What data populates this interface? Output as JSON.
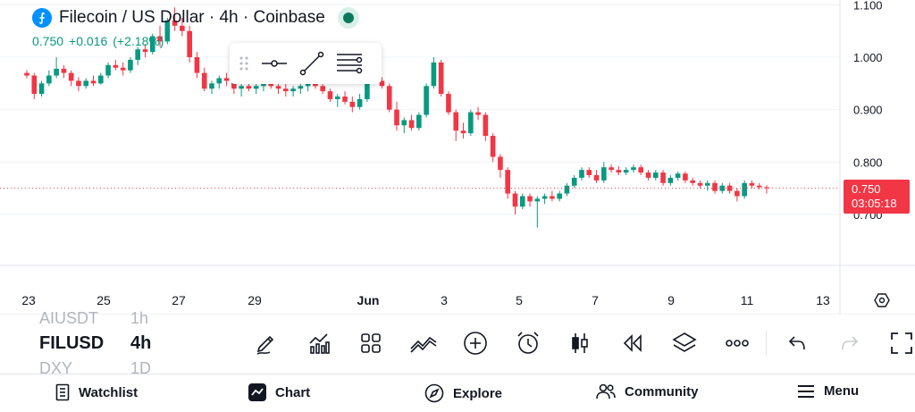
{
  "header": {
    "coin_glyph": "⨍",
    "title": "Filecoin / US Dollar · 4h · Coinbase",
    "price": "0.750",
    "change": "+0.016",
    "change_pct": "(+2.18%)"
  },
  "colors": {
    "up": "#089981",
    "down": "#f23645",
    "badge": "#0090ff",
    "grid": "#f0f3fa"
  },
  "price_axis": {
    "labels": [
      "1.100",
      "1.000",
      "0.900",
      "0.800",
      "0.700"
    ],
    "last_price": "0.750",
    "countdown": "03:05:18"
  },
  "time_axis": {
    "labels": [
      "23",
      "25",
      "27",
      "29",
      "Jun",
      "3",
      "5",
      "7",
      "9",
      "11",
      "13"
    ]
  },
  "chart_data": {
    "type": "candlestick",
    "symbol": "FILUSD",
    "interval": "4h",
    "ylim": [
      0.62,
      1.1
    ],
    "last": 0.75,
    "candles": [
      [
        0.97,
        0.975,
        0.96,
        0.965
      ],
      [
        0.965,
        0.97,
        0.92,
        0.93
      ],
      [
        0.93,
        0.955,
        0.925,
        0.95
      ],
      [
        0.95,
        0.975,
        0.945,
        0.965
      ],
      [
        0.965,
        1.0,
        0.96,
        0.978
      ],
      [
        0.978,
        0.985,
        0.96,
        0.97
      ],
      [
        0.97,
        0.975,
        0.945,
        0.955
      ],
      [
        0.955,
        0.962,
        0.935,
        0.945
      ],
      [
        0.945,
        0.96,
        0.94,
        0.955
      ],
      [
        0.955,
        0.965,
        0.945,
        0.95
      ],
      [
        0.95,
        0.97,
        0.948,
        0.965
      ],
      [
        0.965,
        0.99,
        0.96,
        0.985
      ],
      [
        0.985,
        0.995,
        0.975,
        0.98
      ],
      [
        0.98,
        0.99,
        0.965,
        0.975
      ],
      [
        0.975,
        1.0,
        0.97,
        0.995
      ],
      [
        0.995,
        1.02,
        0.985,
        1.015
      ],
      [
        1.015,
        1.025,
        1.0,
        1.01
      ],
      [
        1.01,
        1.045,
        1.005,
        1.04
      ],
      [
        1.04,
        1.06,
        1.02,
        1.03
      ],
      [
        1.03,
        1.075,
        1.025,
        1.07
      ],
      [
        1.07,
        1.095,
        1.05,
        1.06
      ],
      [
        1.06,
        1.075,
        1.04,
        1.05
      ],
      [
        1.05,
        1.06,
        0.99,
        1.0
      ],
      [
        1.0,
        1.01,
        0.96,
        0.97
      ],
      [
        0.97,
        0.98,
        0.935,
        0.94
      ],
      [
        0.94,
        0.955,
        0.93,
        0.95
      ],
      [
        0.95,
        0.965,
        0.94,
        0.96
      ],
      [
        0.96,
        0.97,
        0.945,
        0.955
      ],
      [
        0.955,
        0.96,
        0.93,
        0.94
      ],
      [
        0.94,
        0.95,
        0.925,
        0.945
      ],
      [
        0.945,
        0.955,
        0.935,
        0.94
      ],
      [
        0.94,
        0.95,
        0.93,
        0.945
      ],
      [
        0.945,
        0.955,
        0.935,
        0.95
      ],
      [
        0.95,
        0.96,
        0.94,
        0.945
      ],
      [
        0.945,
        0.955,
        0.93,
        0.94
      ],
      [
        0.94,
        0.95,
        0.925,
        0.935
      ],
      [
        0.935,
        0.945,
        0.925,
        0.94
      ],
      [
        0.94,
        0.95,
        0.93,
        0.945
      ],
      [
        0.945,
        0.955,
        0.935,
        0.95
      ],
      [
        0.95,
        0.96,
        0.94,
        0.945
      ],
      [
        0.945,
        0.95,
        0.93,
        0.935
      ],
      [
        0.935,
        0.94,
        0.915,
        0.92
      ],
      [
        0.92,
        0.93,
        0.905,
        0.925
      ],
      [
        0.925,
        0.935,
        0.91,
        0.915
      ],
      [
        0.915,
        0.925,
        0.895,
        0.905
      ],
      [
        0.905,
        0.93,
        0.9,
        0.92
      ],
      [
        0.92,
        0.975,
        0.915,
        0.965
      ],
      [
        0.965,
        0.975,
        0.95,
        0.955
      ],
      [
        0.955,
        0.962,
        0.94,
        0.945
      ],
      [
        0.945,
        0.95,
        0.895,
        0.9
      ],
      [
        0.9,
        0.915,
        0.86,
        0.87
      ],
      [
        0.87,
        0.885,
        0.855,
        0.88
      ],
      [
        0.88,
        0.89,
        0.86,
        0.865
      ],
      [
        0.865,
        0.895,
        0.86,
        0.89
      ],
      [
        0.89,
        0.95,
        0.885,
        0.945
      ],
      [
        0.945,
        1.0,
        0.94,
        0.99
      ],
      [
        0.99,
        0.995,
        0.925,
        0.93
      ],
      [
        0.93,
        0.935,
        0.89,
        0.895
      ],
      [
        0.895,
        0.9,
        0.84,
        0.86
      ],
      [
        0.86,
        0.875,
        0.845,
        0.855
      ],
      [
        0.855,
        0.9,
        0.85,
        0.895
      ],
      [
        0.895,
        0.905,
        0.88,
        0.89
      ],
      [
        0.89,
        0.895,
        0.84,
        0.85
      ],
      [
        0.85,
        0.855,
        0.8,
        0.81
      ],
      [
        0.81,
        0.815,
        0.77,
        0.785
      ],
      [
        0.785,
        0.79,
        0.73,
        0.74
      ],
      [
        0.74,
        0.745,
        0.7,
        0.715
      ],
      [
        0.715,
        0.74,
        0.71,
        0.735
      ],
      [
        0.735,
        0.74,
        0.715,
        0.725
      ],
      [
        0.725,
        0.735,
        0.675,
        0.73
      ],
      [
        0.73,
        0.74,
        0.72,
        0.735
      ],
      [
        0.735,
        0.745,
        0.725,
        0.73
      ],
      [
        0.73,
        0.745,
        0.725,
        0.74
      ],
      [
        0.74,
        0.76,
        0.735,
        0.755
      ],
      [
        0.755,
        0.775,
        0.75,
        0.77
      ],
      [
        0.77,
        0.79,
        0.765,
        0.785
      ],
      [
        0.785,
        0.79,
        0.77,
        0.775
      ],
      [
        0.775,
        0.785,
        0.76,
        0.765
      ],
      [
        0.765,
        0.8,
        0.76,
        0.79
      ],
      [
        0.79,
        0.795,
        0.78,
        0.785
      ],
      [
        0.785,
        0.792,
        0.775,
        0.78
      ],
      [
        0.78,
        0.79,
        0.775,
        0.785
      ],
      [
        0.785,
        0.795,
        0.78,
        0.79
      ],
      [
        0.79,
        0.795,
        0.775,
        0.78
      ],
      [
        0.78,
        0.785,
        0.765,
        0.77
      ],
      [
        0.77,
        0.785,
        0.765,
        0.78
      ],
      [
        0.78,
        0.785,
        0.755,
        0.76
      ],
      [
        0.76,
        0.775,
        0.755,
        0.77
      ],
      [
        0.77,
        0.782,
        0.765,
        0.778
      ],
      [
        0.778,
        0.782,
        0.76,
        0.765
      ],
      [
        0.765,
        0.77,
        0.755,
        0.76
      ],
      [
        0.76,
        0.765,
        0.75,
        0.755
      ],
      [
        0.755,
        0.765,
        0.745,
        0.76
      ],
      [
        0.76,
        0.765,
        0.74,
        0.745
      ],
      [
        0.745,
        0.76,
        0.74,
        0.755
      ],
      [
        0.755,
        0.76,
        0.74,
        0.745
      ],
      [
        0.745,
        0.75,
        0.725,
        0.735
      ],
      [
        0.735,
        0.765,
        0.73,
        0.76
      ],
      [
        0.76,
        0.765,
        0.75,
        0.755
      ],
      [
        0.755,
        0.76,
        0.748,
        0.752
      ],
      [
        0.752,
        0.756,
        0.74,
        0.75
      ]
    ]
  },
  "draw_toolbar": {
    "icons": [
      "drag-handle-icon",
      "horizontal-line-icon",
      "trend-line-icon",
      "settings-lines-icon"
    ]
  },
  "watchlist": {
    "rows": [
      {
        "symbol": "AIUSDT",
        "interval": "1h"
      },
      {
        "symbol": "FILUSD",
        "interval": "4h"
      },
      {
        "symbol": "DXY",
        "interval": "1D"
      }
    ]
  },
  "toolbar": {
    "icons": [
      "pencil-icon",
      "indicators-icon",
      "layouts-icon",
      "compare-icon",
      "plus-circle-icon",
      "alarm-icon",
      "candle-icon",
      "replay-icon",
      "layers-icon",
      "more-icon",
      "undo-icon",
      "redo-icon",
      "fullscreen-icon"
    ]
  },
  "nav": {
    "watchlist": "Watchlist",
    "chart": "Chart",
    "explore": "Explore",
    "community": "Community",
    "menu": "Menu"
  }
}
